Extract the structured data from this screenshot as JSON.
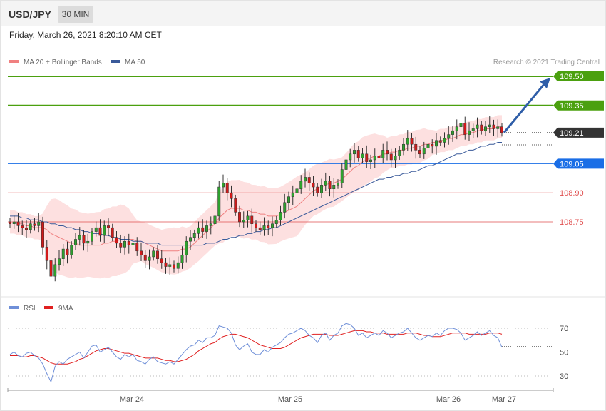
{
  "header": {
    "symbol": "USD/JPY",
    "interval": "30 MIN",
    "datetime": "Friday, March 26, 2021 8:20:10 AM CET"
  },
  "legend": {
    "ma20": "MA 20 + Bollinger Bands",
    "ma50": "MA 50",
    "copyright": "Research © 2021 Trading Central",
    "rsi": "RSI",
    "ma9": "9MA"
  },
  "colors": {
    "bull": "#2ea12e",
    "bear": "#d11a1a",
    "ma20": "#f08080",
    "ma50": "#3a5a9a",
    "band": "#fde0e0",
    "target": "#4ba00f",
    "current": "#333333",
    "pivot": "#1a6ee6",
    "support": "#e05050",
    "rsi": "#6f8fd8",
    "rsi_ma": "#e02020",
    "arrow": "#2f5ea8"
  },
  "chart_data": [
    {
      "type": "candlestick",
      "title": "",
      "x_tick_labels": [
        "Mar 24",
        "Mar 25",
        "Mar 26",
        "Mar 27"
      ],
      "ylim": [
        108.5,
        109.55
      ],
      "levels": [
        {
          "value": 109.5,
          "label": "109.50",
          "kind": "target"
        },
        {
          "value": 109.35,
          "label": "109.35",
          "kind": "target"
        },
        {
          "value": 109.21,
          "label": "109.21",
          "kind": "current"
        },
        {
          "value": 109.05,
          "label": "109.05",
          "kind": "pivot"
        },
        {
          "value": 108.9,
          "label": "108.90",
          "kind": "support"
        },
        {
          "value": 108.75,
          "label": "108.75",
          "kind": "support"
        }
      ],
      "closes": [
        108.74,
        108.75,
        108.73,
        108.72,
        108.71,
        108.74,
        108.73,
        108.75,
        108.62,
        108.55,
        108.47,
        108.53,
        108.56,
        108.61,
        108.58,
        108.63,
        108.66,
        108.68,
        108.64,
        108.65,
        108.7,
        108.72,
        108.68,
        108.73,
        108.72,
        108.67,
        108.64,
        108.62,
        108.65,
        108.63,
        108.64,
        108.6,
        108.58,
        108.55,
        108.57,
        108.6,
        108.56,
        108.54,
        108.52,
        108.53,
        108.51,
        108.54,
        108.58,
        108.65,
        108.67,
        108.69,
        108.72,
        108.7,
        108.73,
        108.74,
        108.78,
        108.93,
        108.95,
        108.9,
        108.87,
        108.8,
        108.75,
        108.76,
        108.78,
        108.74,
        108.72,
        108.71,
        108.73,
        108.72,
        108.74,
        108.76,
        108.8,
        108.85,
        108.88,
        108.9,
        108.92,
        108.96,
        108.98,
        108.95,
        108.93,
        108.9,
        108.94,
        108.96,
        108.92,
        108.94,
        108.95,
        109.02,
        109.07,
        109.1,
        109.12,
        109.08,
        109.1,
        109.06,
        109.07,
        109.09,
        109.08,
        109.12,
        109.1,
        109.07,
        109.09,
        109.12,
        109.15,
        109.18,
        109.15,
        109.12,
        109.1,
        109.13,
        109.15,
        109.14,
        109.17,
        109.16,
        109.18,
        109.2,
        109.22,
        109.24,
        109.26,
        109.2,
        109.22,
        109.23,
        109.25,
        109.22,
        109.24,
        109.25,
        109.23,
        109.24,
        109.21
      ],
      "ma20": [
        108.75,
        108.75,
        108.74,
        108.74,
        108.73,
        108.73,
        108.72,
        108.72,
        108.72,
        108.71,
        108.69,
        108.68,
        108.67,
        108.66,
        108.65,
        108.64,
        108.64,
        108.63,
        108.63,
        108.63,
        108.63,
        108.63,
        108.63,
        108.64,
        108.64,
        108.65,
        108.65,
        108.66,
        108.66,
        108.66,
        108.66,
        108.65,
        108.65,
        108.64,
        108.63,
        108.62,
        108.61,
        108.6,
        108.6,
        108.6,
        108.6,
        108.6,
        108.61,
        108.61,
        108.62,
        108.64,
        108.66,
        108.68,
        108.7,
        108.72,
        108.74,
        108.77,
        108.79,
        108.81,
        108.82,
        108.82,
        108.82,
        108.81,
        108.81,
        108.8,
        108.8,
        108.79,
        108.79,
        108.78,
        108.78,
        108.78,
        108.79,
        108.8,
        108.81,
        108.82,
        108.83,
        108.85,
        108.87,
        108.89,
        108.91,
        108.92,
        108.93,
        108.94,
        108.95,
        108.95,
        108.96,
        108.97,
        108.99,
        109.01,
        109.03,
        109.04,
        109.06,
        109.07,
        109.08,
        109.09,
        109.09,
        109.1,
        109.1,
        109.11,
        109.11,
        109.12,
        109.12,
        109.13,
        109.13,
        109.14,
        109.14,
        109.15,
        109.15,
        109.16,
        109.16,
        109.17,
        109.17,
        109.18,
        109.18,
        109.19,
        109.2,
        109.2,
        109.21,
        109.21,
        109.22,
        109.22,
        109.23,
        109.23,
        109.23,
        109.24,
        109.24
      ],
      "ma50": [
        108.78,
        108.78,
        108.78,
        108.77,
        108.77,
        108.76,
        108.76,
        108.76,
        108.75,
        108.75,
        108.74,
        108.74,
        108.73,
        108.73,
        108.72,
        108.72,
        108.71,
        108.71,
        108.7,
        108.7,
        108.69,
        108.69,
        108.69,
        108.68,
        108.68,
        108.67,
        108.67,
        108.66,
        108.66,
        108.66,
        108.65,
        108.65,
        108.65,
        108.64,
        108.64,
        108.64,
        108.64,
        108.63,
        108.63,
        108.63,
        108.63,
        108.63,
        108.63,
        108.63,
        108.63,
        108.63,
        108.63,
        108.63,
        108.64,
        108.64,
        108.64,
        108.65,
        108.66,
        108.66,
        108.67,
        108.67,
        108.68,
        108.68,
        108.69,
        108.69,
        108.7,
        108.7,
        108.71,
        108.71,
        108.72,
        108.72,
        108.73,
        108.74,
        108.75,
        108.76,
        108.77,
        108.78,
        108.79,
        108.8,
        108.81,
        108.82,
        108.83,
        108.84,
        108.85,
        108.86,
        108.87,
        108.88,
        108.89,
        108.9,
        108.91,
        108.92,
        108.93,
        108.94,
        108.95,
        108.96,
        108.97,
        108.97,
        108.98,
        108.98,
        108.99,
        108.99,
        109.0,
        109.0,
        109.01,
        109.01,
        109.02,
        109.03,
        109.04,
        109.04,
        109.05,
        109.06,
        109.07,
        109.08,
        109.09,
        109.1,
        109.1,
        109.11,
        109.12,
        109.12,
        109.13,
        109.14,
        109.14,
        109.15,
        109.15,
        109.16,
        109.16
      ]
    },
    {
      "type": "line",
      "series_names": [
        "RSI",
        "9MA"
      ],
      "ylim": [
        20,
        80
      ],
      "y_tick_labels": [
        "70",
        "50",
        "30"
      ],
      "y_ticks": [
        70,
        50,
        30
      ],
      "rsi": [
        48,
        50,
        47,
        46,
        49,
        50,
        47,
        45,
        40,
        32,
        25,
        38,
        42,
        40,
        44,
        46,
        48,
        50,
        45,
        50,
        55,
        56,
        50,
        52,
        54,
        50,
        46,
        44,
        48,
        46,
        48,
        43,
        42,
        40,
        44,
        46,
        42,
        41,
        40,
        42,
        40,
        44,
        48,
        52,
        55,
        56,
        60,
        58,
        62,
        62,
        64,
        72,
        71,
        70,
        66,
        56,
        52,
        55,
        57,
        50,
        48,
        48,
        52,
        50,
        54,
        56,
        58,
        62,
        65,
        66,
        68,
        70,
        68,
        64,
        62,
        58,
        64,
        66,
        60,
        64,
        66,
        72,
        74,
        73,
        70,
        64,
        66,
        62,
        64,
        66,
        64,
        68,
        66,
        62,
        64,
        66,
        67,
        70,
        66,
        62,
        60,
        62,
        64,
        63,
        66,
        64,
        68,
        70,
        70,
        69,
        66,
        60,
        62,
        64,
        67,
        64,
        66,
        68,
        64,
        62,
        54
      ],
      "rsi_ma": [
        47,
        47,
        47,
        46,
        46,
        47,
        47,
        46,
        45,
        43,
        41,
        40,
        40,
        40,
        40,
        41,
        42,
        44,
        45,
        47,
        49,
        51,
        52,
        53,
        53,
        52,
        51,
        50,
        49,
        49,
        48,
        47,
        46,
        45,
        45,
        45,
        45,
        44,
        43,
        43,
        42,
        42,
        43,
        44,
        46,
        48,
        51,
        53,
        55,
        57,
        58,
        61,
        63,
        64,
        65,
        65,
        64,
        63,
        62,
        60,
        58,
        56,
        55,
        54,
        53,
        53,
        53,
        54,
        56,
        58,
        60,
        62,
        63,
        64,
        65,
        65,
        65,
        65,
        64,
        64,
        64,
        65,
        66,
        67,
        68,
        68,
        68,
        67,
        67,
        66,
        66,
        66,
        65,
        65,
        65,
        65,
        65,
        66,
        66,
        66,
        65,
        64,
        64,
        63,
        63,
        63,
        64,
        65,
        66,
        66,
        66,
        66,
        65,
        65,
        65,
        65,
        65,
        66,
        66,
        66,
        65
      ]
    }
  ]
}
